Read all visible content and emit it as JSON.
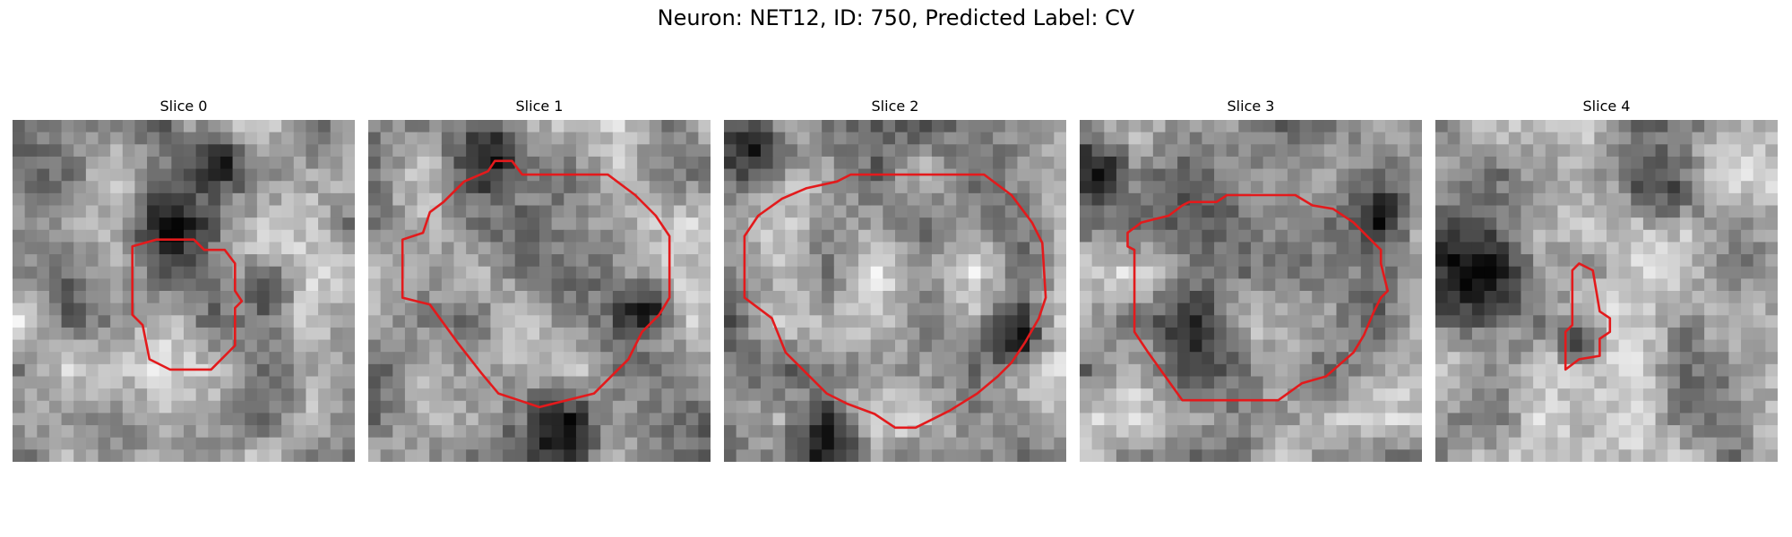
{
  "figure": {
    "title": "Neuron: NET12, ID: 750, Predicted Label: CV"
  },
  "contour_color": "#e31a1c",
  "panels": [
    {
      "title": "Slice 0",
      "seed": 11,
      "dark_spots": [
        [
          0.75,
          0.48,
          0.07
        ],
        [
          0.6,
          0.12,
          0.08
        ],
        [
          0.45,
          0.3,
          0.1
        ]
      ],
      "contour": [
        [
          0.35,
          0.37
        ],
        [
          0.42,
          0.35
        ],
        [
          0.53,
          0.35
        ],
        [
          0.56,
          0.38
        ],
        [
          0.62,
          0.38
        ],
        [
          0.65,
          0.42
        ],
        [
          0.65,
          0.5
        ],
        [
          0.67,
          0.53
        ],
        [
          0.65,
          0.55
        ],
        [
          0.65,
          0.66
        ],
        [
          0.58,
          0.73
        ],
        [
          0.46,
          0.73
        ],
        [
          0.4,
          0.7
        ],
        [
          0.38,
          0.6
        ],
        [
          0.35,
          0.57
        ]
      ]
    },
    {
      "title": "Slice 1",
      "seed": 23,
      "dark_spots": [
        [
          0.82,
          0.55,
          0.07
        ],
        [
          0.35,
          0.1,
          0.1
        ],
        [
          0.5,
          0.9,
          0.12
        ]
      ],
      "contour": [
        [
          0.16,
          0.33
        ],
        [
          0.18,
          0.27
        ],
        [
          0.22,
          0.24
        ],
        [
          0.28,
          0.18
        ],
        [
          0.35,
          0.15
        ],
        [
          0.37,
          0.12
        ],
        [
          0.42,
          0.12
        ],
        [
          0.45,
          0.16
        ],
        [
          0.7,
          0.16
        ],
        [
          0.78,
          0.22
        ],
        [
          0.84,
          0.28
        ],
        [
          0.88,
          0.34
        ],
        [
          0.88,
          0.52
        ],
        [
          0.85,
          0.57
        ],
        [
          0.8,
          0.62
        ],
        [
          0.76,
          0.7
        ],
        [
          0.72,
          0.74
        ],
        [
          0.66,
          0.8
        ],
        [
          0.5,
          0.84
        ],
        [
          0.44,
          0.82
        ],
        [
          0.38,
          0.8
        ],
        [
          0.33,
          0.74
        ],
        [
          0.26,
          0.65
        ],
        [
          0.18,
          0.54
        ],
        [
          0.1,
          0.52
        ],
        [
          0.1,
          0.35
        ]
      ]
    },
    {
      "title": "Slice 2",
      "seed": 37,
      "dark_spots": [
        [
          0.85,
          0.65,
          0.08
        ],
        [
          0.3,
          0.95,
          0.1
        ],
        [
          0.1,
          0.1,
          0.09
        ]
      ],
      "contour": [
        [
          0.06,
          0.34
        ],
        [
          0.1,
          0.28
        ],
        [
          0.17,
          0.23
        ],
        [
          0.24,
          0.2
        ],
        [
          0.33,
          0.18
        ],
        [
          0.37,
          0.16
        ],
        [
          0.76,
          0.16
        ],
        [
          0.84,
          0.22
        ],
        [
          0.9,
          0.3
        ],
        [
          0.93,
          0.36
        ],
        [
          0.94,
          0.52
        ],
        [
          0.92,
          0.58
        ],
        [
          0.88,
          0.65
        ],
        [
          0.84,
          0.71
        ],
        [
          0.8,
          0.75
        ],
        [
          0.74,
          0.8
        ],
        [
          0.66,
          0.85
        ],
        [
          0.6,
          0.88
        ],
        [
          0.56,
          0.9
        ],
        [
          0.5,
          0.9
        ],
        [
          0.44,
          0.86
        ],
        [
          0.36,
          0.83
        ],
        [
          0.3,
          0.8
        ],
        [
          0.24,
          0.74
        ],
        [
          0.18,
          0.68
        ],
        [
          0.14,
          0.58
        ],
        [
          0.06,
          0.52
        ]
      ]
    },
    {
      "title": "Slice 3",
      "seed": 49,
      "dark_spots": [
        [
          0.88,
          0.28,
          0.07
        ],
        [
          0.05,
          0.15,
          0.08
        ],
        [
          0.35,
          0.6,
          0.1
        ]
      ],
      "contour": [
        [
          0.18,
          0.3
        ],
        [
          0.22,
          0.29
        ],
        [
          0.26,
          0.28
        ],
        [
          0.3,
          0.25
        ],
        [
          0.32,
          0.24
        ],
        [
          0.36,
          0.24
        ],
        [
          0.4,
          0.24
        ],
        [
          0.43,
          0.22
        ],
        [
          0.63,
          0.22
        ],
        [
          0.68,
          0.25
        ],
        [
          0.74,
          0.26
        ],
        [
          0.8,
          0.3
        ],
        [
          0.84,
          0.34
        ],
        [
          0.88,
          0.38
        ],
        [
          0.88,
          0.42
        ],
        [
          0.9,
          0.5
        ],
        [
          0.88,
          0.52
        ],
        [
          0.86,
          0.56
        ],
        [
          0.83,
          0.63
        ],
        [
          0.8,
          0.68
        ],
        [
          0.72,
          0.75
        ],
        [
          0.65,
          0.77
        ],
        [
          0.58,
          0.82
        ],
        [
          0.3,
          0.82
        ],
        [
          0.25,
          0.75
        ],
        [
          0.2,
          0.68
        ],
        [
          0.16,
          0.62
        ],
        [
          0.16,
          0.38
        ],
        [
          0.14,
          0.37
        ],
        [
          0.14,
          0.33
        ]
      ]
    },
    {
      "title": "Slice 4",
      "seed": 61,
      "dark_spots": [
        [
          0.42,
          0.64,
          0.06
        ],
        [
          0.12,
          0.45,
          0.12
        ],
        [
          0.7,
          0.2,
          0.1
        ]
      ],
      "contour": [
        [
          0.4,
          0.44
        ],
        [
          0.42,
          0.42
        ],
        [
          0.46,
          0.44
        ],
        [
          0.48,
          0.56
        ],
        [
          0.51,
          0.58
        ],
        [
          0.51,
          0.62
        ],
        [
          0.48,
          0.64
        ],
        [
          0.48,
          0.69
        ],
        [
          0.42,
          0.7
        ],
        [
          0.38,
          0.73
        ],
        [
          0.38,
          0.62
        ],
        [
          0.4,
          0.6
        ],
        [
          0.4,
          0.48
        ]
      ]
    }
  ]
}
